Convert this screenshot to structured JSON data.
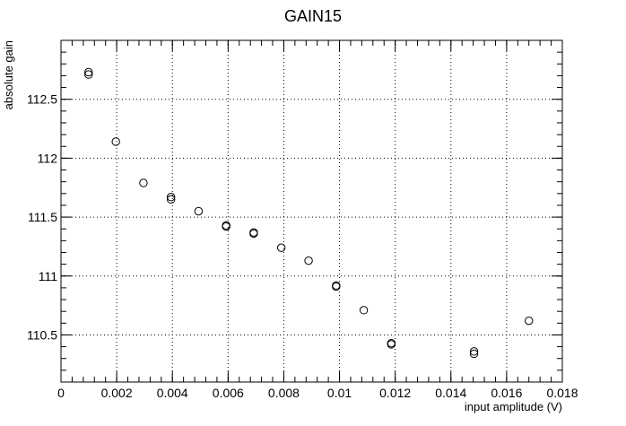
{
  "chart_data": {
    "type": "scatter",
    "title": "GAIN15",
    "xlabel": "input amplitude (V)",
    "ylabel": "absolute gain",
    "xlim": [
      0,
      0.018
    ],
    "ylim": [
      110.1,
      113.0
    ],
    "x_ticks": [
      0,
      0.002,
      0.004,
      0.006,
      0.008,
      0.01,
      0.012,
      0.014,
      0.016,
      0.018
    ],
    "x_tick_labels": [
      "0",
      "0.002",
      "0.004",
      "0.006",
      "0.008",
      "0.01",
      "0.012",
      "0.014",
      "0.016",
      "0.018"
    ],
    "y_ticks": [
      110.5,
      111,
      111.5,
      112,
      112.5
    ],
    "y_tick_labels": [
      "110.5",
      "111",
      "111.5",
      "112",
      "112.5"
    ],
    "x_minor_step": 0.0004,
    "y_minor_step": 0.1,
    "grid": true,
    "marker": "open-circle",
    "series": [
      {
        "points": [
          [
            0.00099,
            112.73
          ],
          [
            0.00099,
            112.71
          ],
          [
            0.00197,
            112.14
          ],
          [
            0.00296,
            111.79
          ],
          [
            0.00395,
            111.67
          ],
          [
            0.00395,
            111.65
          ],
          [
            0.00494,
            111.55
          ],
          [
            0.00593,
            111.43
          ],
          [
            0.00593,
            111.42
          ],
          [
            0.00692,
            111.37
          ],
          [
            0.00692,
            111.36
          ],
          [
            0.00791,
            111.24
          ],
          [
            0.00889,
            111.13
          ],
          [
            0.00988,
            110.92
          ],
          [
            0.00988,
            110.91
          ],
          [
            0.01087,
            110.71
          ],
          [
            0.01186,
            110.43
          ],
          [
            0.01186,
            110.42
          ],
          [
            0.01483,
            110.36
          ],
          [
            0.01483,
            110.34
          ],
          [
            0.0168,
            110.62
          ]
        ]
      }
    ]
  }
}
